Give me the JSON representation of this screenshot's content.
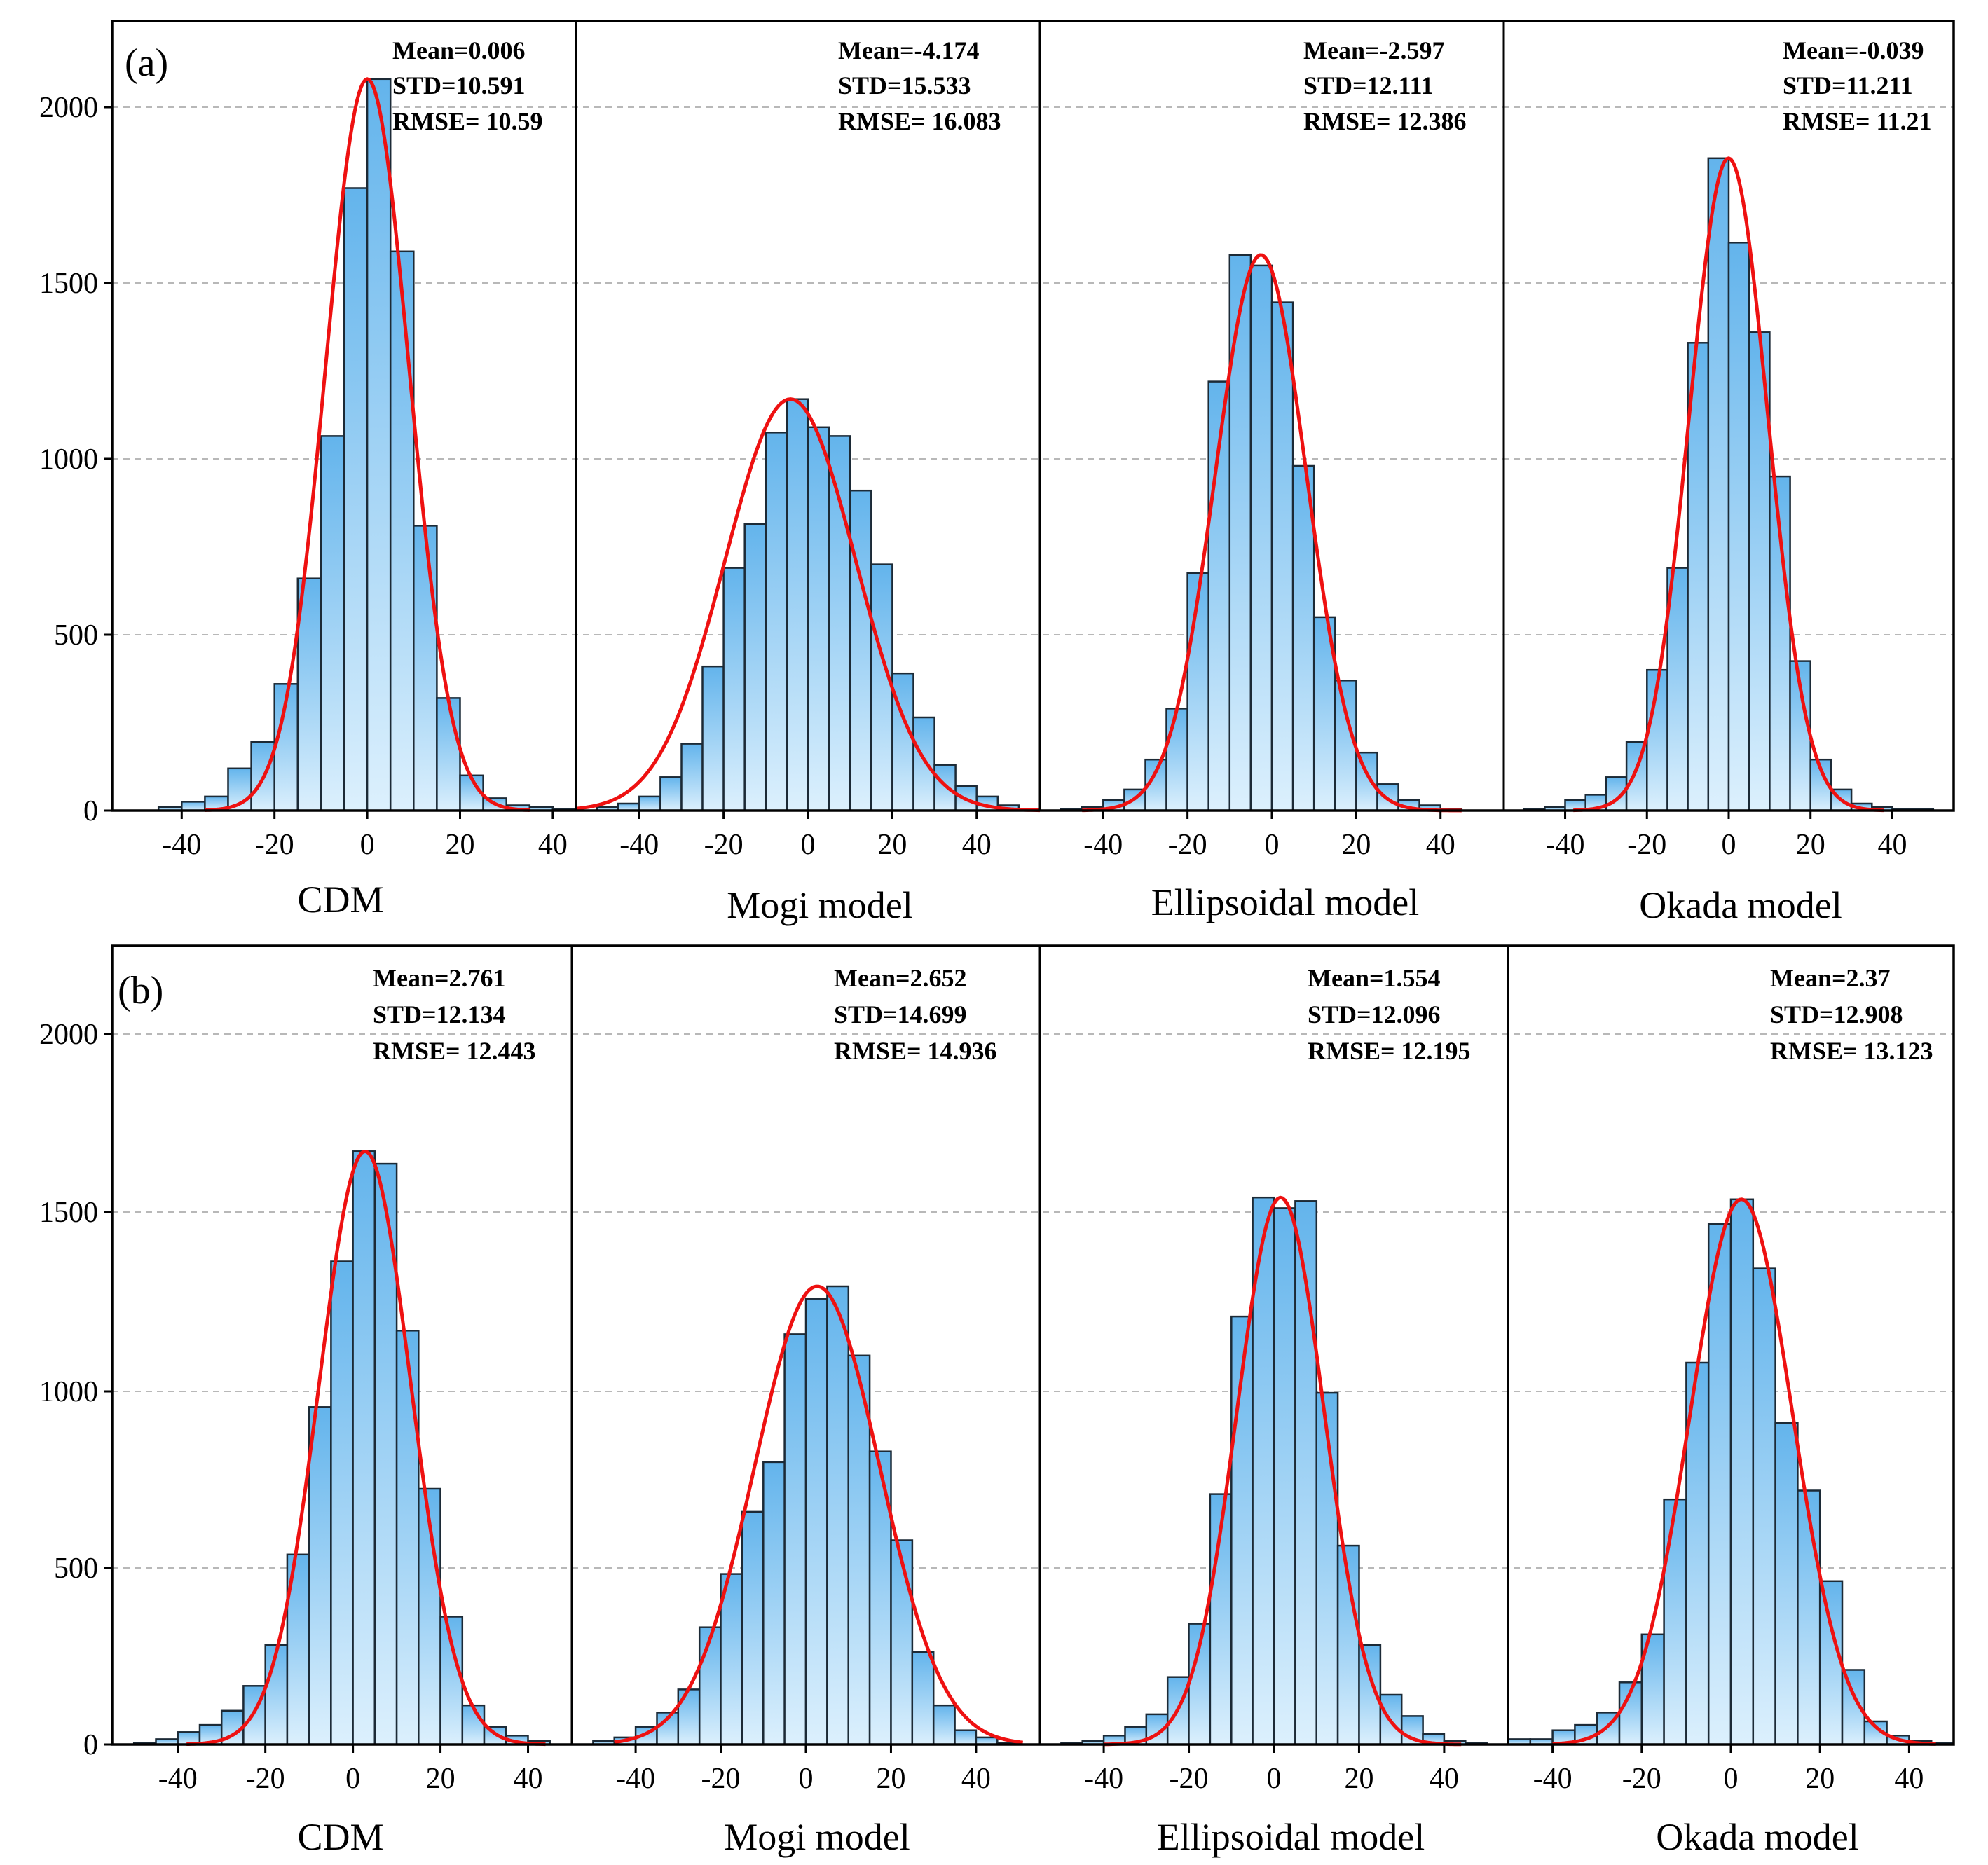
{
  "rows": [
    {
      "label": "(a)",
      "panels": [
        {
          "xlabel": "CDM",
          "stats": [
            "Mean=0.006",
            "STD=10.591",
            "RMSE= 10.59"
          ]
        },
        {
          "xlabel": "Mogi model",
          "stats": [
            "Mean=-4.174",
            "STD=15.533",
            "RMSE= 16.083"
          ]
        },
        {
          "xlabel": "Ellipsoidal model",
          "stats": [
            "Mean=-2.597",
            "STD=12.111",
            "RMSE= 12.386"
          ]
        },
        {
          "xlabel": "Okada model",
          "stats": [
            "Mean=-0.039",
            "STD=11.211",
            "RMSE= 11.21"
          ]
        }
      ]
    },
    {
      "label": "(b)",
      "panels": [
        {
          "xlabel": "CDM",
          "stats": [
            "Mean=2.761",
            "STD=12.134",
            "RMSE= 12.443"
          ]
        },
        {
          "xlabel": "Mogi model",
          "stats": [
            "Mean=2.652",
            "STD=14.699",
            "RMSE= 14.936"
          ]
        },
        {
          "xlabel": "Ellipsoidal model",
          "stats": [
            "Mean=1.554",
            "STD=12.096",
            "RMSE= 12.195"
          ]
        },
        {
          "xlabel": "Okada model",
          "stats": [
            "Mean=2.37",
            "STD=12.908",
            "RMSE= 13.123"
          ]
        }
      ]
    }
  ],
  "chart_data": {
    "type": "bar",
    "description": "Residual histograms with fitted normal curves",
    "colors": {
      "bar_top": "#63b4ec",
      "bar_bottom": "#dcf0fd",
      "curve": "#ee1111"
    },
    "ylim": [
      0,
      2250
    ],
    "yticks": [
      0,
      500,
      1000,
      1500,
      2000
    ],
    "xticks": [
      -40,
      -20,
      0,
      20,
      40
    ],
    "bin_width": 5,
    "subplots": [
      {
        "row": 0,
        "xlabel": "CDM",
        "xlim": [
          -55,
          45
        ],
        "bin_start": -50,
        "values": [
          0,
          10,
          25,
          40,
          120,
          195,
          360,
          660,
          1065,
          1770,
          2080,
          1590,
          810,
          320,
          100,
          35,
          15,
          10,
          5,
          0
        ],
        "normal": {
          "peak": 2080,
          "mean": 0.006,
          "sd": 9.0,
          "x_range": [
            -35,
            35
          ]
        }
      },
      {
        "row": 0,
        "xlabel": "Mogi model",
        "xlim": [
          -55,
          55
        ],
        "bin_start": -55,
        "values": [
          0,
          10,
          20,
          40,
          95,
          190,
          410,
          690,
          815,
          1075,
          1170,
          1090,
          1065,
          910,
          700,
          390,
          265,
          130,
          70,
          40,
          15,
          5
        ],
        "normal": {
          "peak": 1170,
          "mean": -4.174,
          "sd": 15.533,
          "x_range": [
            -55,
            55
          ]
        }
      },
      {
        "row": 0,
        "xlabel": "Ellipsoidal model",
        "xlim": [
          -55,
          55
        ],
        "bin_start": -55,
        "values": [
          0,
          5,
          10,
          30,
          60,
          145,
          290,
          675,
          1220,
          1580,
          1550,
          1445,
          980,
          550,
          370,
          165,
          75,
          30,
          15,
          5,
          0,
          0
        ],
        "normal": {
          "peak": 1580,
          "mean": -2.597,
          "sd": 10.8,
          "x_range": [
            -45,
            45
          ]
        }
      },
      {
        "row": 0,
        "xlabel": "Okada model",
        "xlim": [
          -55,
          55
        ],
        "bin_start": -55,
        "values": [
          0,
          5,
          10,
          30,
          45,
          95,
          195,
          400,
          690,
          1330,
          1855,
          1615,
          1360,
          950,
          425,
          145,
          60,
          20,
          10,
          5,
          5,
          0
        ],
        "normal": {
          "peak": 1855,
          "mean": -0.039,
          "sd": 9.6,
          "x_range": [
            -38,
            38
          ]
        }
      },
      {
        "row": 1,
        "xlabel": "CDM",
        "xlim": [
          -55,
          50
        ],
        "bin_start": -55,
        "values": [
          0,
          5,
          15,
          35,
          55,
          95,
          165,
          280,
          535,
          950,
          1360,
          1670,
          1635,
          1165,
          720,
          360,
          110,
          50,
          25,
          10,
          0
        ],
        "normal": {
          "peak": 1670,
          "mean": 2.761,
          "sd": 10.5,
          "x_range": [
            -38,
            44
          ]
        }
      },
      {
        "row": 1,
        "xlabel": "Mogi model",
        "xlim": [
          -55,
          55
        ],
        "bin_start": -55,
        "values": [
          0,
          10,
          20,
          50,
          90,
          155,
          330,
          480,
          655,
          795,
          1155,
          1255,
          1290,
          1095,
          825,
          575,
          260,
          110,
          40,
          20,
          5,
          0
        ],
        "normal": {
          "peak": 1290,
          "mean": 2.652,
          "sd": 14.699,
          "x_range": [
            -45,
            51
          ]
        }
      },
      {
        "row": 1,
        "xlabel": "Ellipsoidal model",
        "xlim": [
          -55,
          55
        ],
        "bin_start": -55,
        "values": [
          0,
          5,
          10,
          25,
          50,
          85,
          190,
          340,
          705,
          1205,
          1540,
          1510,
          1530,
          990,
          560,
          280,
          140,
          80,
          30,
          10,
          5,
          0
        ],
        "normal": {
          "peak": 1540,
          "mean": 1.554,
          "sd": 10.3,
          "x_range": [
            -40,
            44
          ]
        }
      },
      {
        "row": 1,
        "xlabel": "Okada model",
        "xlim": [
          -50,
          50
        ],
        "bin_start": -50,
        "values": [
          15,
          15,
          40,
          55,
          90,
          175,
          310,
          690,
          1075,
          1465,
          1535,
          1340,
          905,
          715,
          460,
          210,
          65,
          25,
          10,
          5
        ],
        "normal": {
          "peak": 1535,
          "mean": 2.37,
          "sd": 11.5,
          "x_range": [
            -40,
            46
          ]
        }
      }
    ]
  }
}
